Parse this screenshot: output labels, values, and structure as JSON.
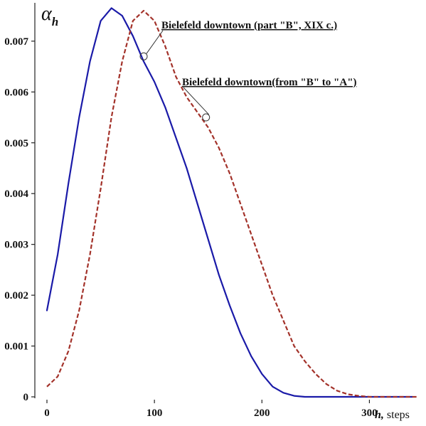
{
  "chart_data": {
    "type": "line",
    "title": "",
    "ylabel_symbol": "α",
    "ylabel_subscript": "h",
    "xlabel_var": "h,",
    "xlabel_unit": "steps",
    "xlim": [
      0,
      350
    ],
    "ylim": [
      0,
      0.0076
    ],
    "grid": false,
    "x_ticks": [
      0,
      100,
      200,
      300
    ],
    "y_ticks": [
      0,
      0.001,
      0.002,
      0.003,
      0.004,
      0.005,
      0.006,
      0.007
    ],
    "x_tick_labels": [
      "0",
      "100",
      "200",
      "300"
    ],
    "y_tick_labels": [
      "0",
      "0.001",
      "0.002",
      "0.003",
      "0.004",
      "0.005",
      "0.006",
      "0.007"
    ],
    "series": [
      {
        "color": "#1a1aa8",
        "style": "solid",
        "x": [
          0,
          10,
          20,
          30,
          40,
          50,
          60,
          70,
          80,
          90,
          100,
          110,
          120,
          130,
          140,
          150,
          160,
          170,
          180,
          190,
          200,
          210,
          220,
          230,
          240,
          250,
          260,
          280,
          300,
          320,
          340
        ],
        "y": [
          0.0017,
          0.0028,
          0.0042,
          0.0055,
          0.0066,
          0.0074,
          0.00765,
          0.0075,
          0.0071,
          0.0066,
          0.0062,
          0.0057,
          0.0051,
          0.0045,
          0.0038,
          0.0031,
          0.0024,
          0.0018,
          0.00125,
          0.0008,
          0.00045,
          0.0002,
          8e-05,
          2e-05,
          0.0,
          0.0,
          0.0,
          0.0,
          0.0,
          0.0,
          0.0
        ]
      },
      {
        "color": "#a3322a",
        "style": "dashed",
        "x": [
          0,
          10,
          20,
          30,
          40,
          50,
          60,
          70,
          80,
          90,
          100,
          110,
          120,
          130,
          140,
          150,
          160,
          170,
          180,
          190,
          200,
          210,
          220,
          230,
          240,
          250,
          260,
          270,
          280,
          290,
          300,
          320,
          340,
          360
        ],
        "y": [
          0.0002,
          0.0004,
          0.0009,
          0.0017,
          0.0028,
          0.0041,
          0.0055,
          0.0066,
          0.0074,
          0.0076,
          0.0074,
          0.0069,
          0.0063,
          0.0059,
          0.0056,
          0.0053,
          0.0049,
          0.0044,
          0.0038,
          0.0032,
          0.0026,
          0.002,
          0.0015,
          0.001,
          0.0007,
          0.00045,
          0.00025,
          0.00012,
          5e-05,
          2e-05,
          0.0,
          0.0,
          0.0,
          0.0
        ]
      }
    ],
    "annotations": [
      {
        "text": "Bielefeld downtown (part \"B\", XIX c.)",
        "point_x": 90,
        "point_y": 0.0067
      },
      {
        "text": "Bielefeld downtown(from \"B\" to \"A\")",
        "point_x": 148,
        "point_y": 0.0055
      }
    ]
  }
}
